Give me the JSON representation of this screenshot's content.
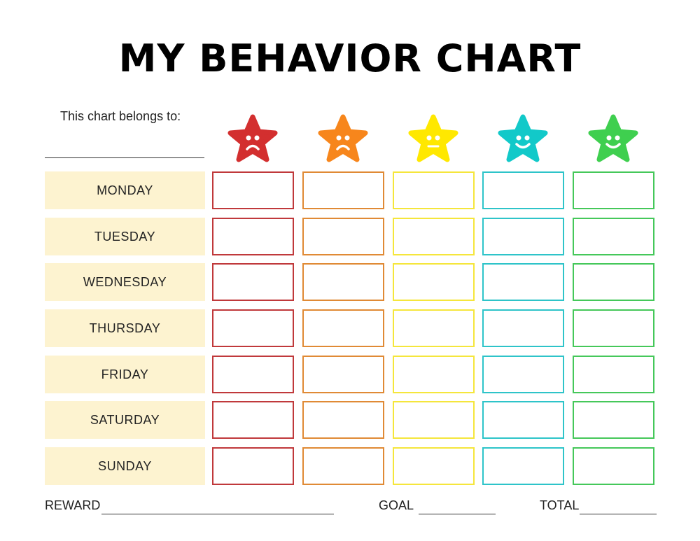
{
  "title": "MY BEHAVIOR CHART",
  "owner": {
    "label": "This chart belongs to:",
    "value": ""
  },
  "ratings": [
    {
      "name": "very-sad",
      "color": "#d32f2f",
      "border": "#c0393b",
      "mouth": "frown"
    },
    {
      "name": "sad",
      "color": "#f7861c",
      "border": "#e08a35",
      "mouth": "frown"
    },
    {
      "name": "neutral",
      "color": "#ffe800",
      "border": "#f5e63c",
      "mouth": "flat"
    },
    {
      "name": "happy",
      "color": "#12c9c9",
      "border": "#2ec4c9",
      "mouth": "smile"
    },
    {
      "name": "very-happy",
      "color": "#3fcf4f",
      "border": "#45c85a",
      "mouth": "smile"
    }
  ],
  "days": [
    "MONDAY",
    "TUESDAY",
    "WEDNESDAY",
    "THURSDAY",
    "FRIDAY",
    "SATURDAY",
    "SUNDAY"
  ],
  "footer": {
    "reward_label": "REWARD",
    "goal_label": "GOAL",
    "total_label": "TOTAL",
    "reward": "",
    "goal": "",
    "total": ""
  }
}
